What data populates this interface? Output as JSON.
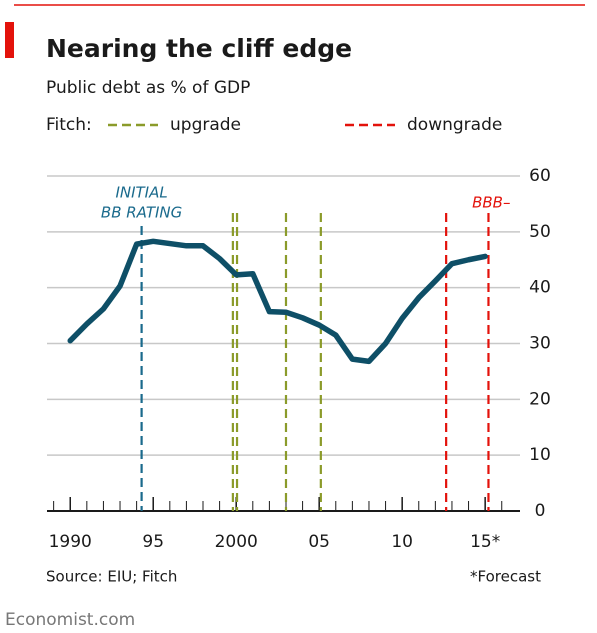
{
  "chart_data": {
    "type": "line",
    "title": "Nearing the cliff edge",
    "subtitle": "Public debt as % of GDP",
    "legend_title": "Fitch:",
    "legend": [
      {
        "name": "upgrade",
        "color": "#8b9b2a"
      },
      {
        "name": "downgrade",
        "color": "#e3120b"
      }
    ],
    "x": [
      1990,
      1991,
      1992,
      1993,
      1994,
      1995,
      1996,
      1997,
      1998,
      1999,
      2000,
      2001,
      2002,
      2003,
      2004,
      2005,
      2006,
      2007,
      2008,
      2009,
      2010,
      2011,
      2012,
      2013,
      2014,
      2015
    ],
    "series": [
      {
        "name": "Public debt",
        "color": "#0e4f67",
        "values": [
          30.5,
          33.5,
          36.2,
          40.3,
          47.8,
          48.3,
          47.9,
          47.5,
          47.5,
          45.2,
          42.3,
          42.5,
          35.7,
          35.6,
          34.6,
          33.3,
          31.5,
          27.2,
          26.8,
          30.0,
          34.5,
          38.2,
          41.2,
          44.3,
          45.0,
          45.6
        ]
      }
    ],
    "upgrades": [
      1999.8,
      2000.05,
      2003.0,
      2005.1
    ],
    "downgrades": [
      2012.65,
      2015.2
    ],
    "initial_rating": {
      "x": 1994.3,
      "color": "#1a6a8c",
      "label": [
        "INITIAL",
        "BB RATING"
      ]
    },
    "downgrade_annotation": "BBB–",
    "xlim": [
      1988.6,
      2017.1
    ],
    "xticks": [
      1990,
      {
        "value": 1995,
        "label": "95"
      },
      2000,
      {
        "value": 2005,
        "label": "05"
      },
      {
        "value": 2010,
        "label": "10"
      },
      {
        "value": 2015,
        "label": "15*"
      }
    ],
    "minor_xticks": [
      1989,
      1990,
      1991,
      1992,
      1993,
      1994,
      1995,
      1996,
      1997,
      1998,
      1999,
      2000,
      2001,
      2002,
      2003,
      2004,
      2005,
      2006,
      2007,
      2008,
      2009,
      2010,
      2011,
      2012,
      2013,
      2014,
      2015,
      2016
    ],
    "ylim": [
      0,
      60
    ],
    "yticks": [
      0,
      10,
      20,
      30,
      40,
      50,
      60
    ],
    "grid": true,
    "source": "Source: EIU; Fitch",
    "footnote": "*Forecast",
    "credit": "Economist.com"
  }
}
